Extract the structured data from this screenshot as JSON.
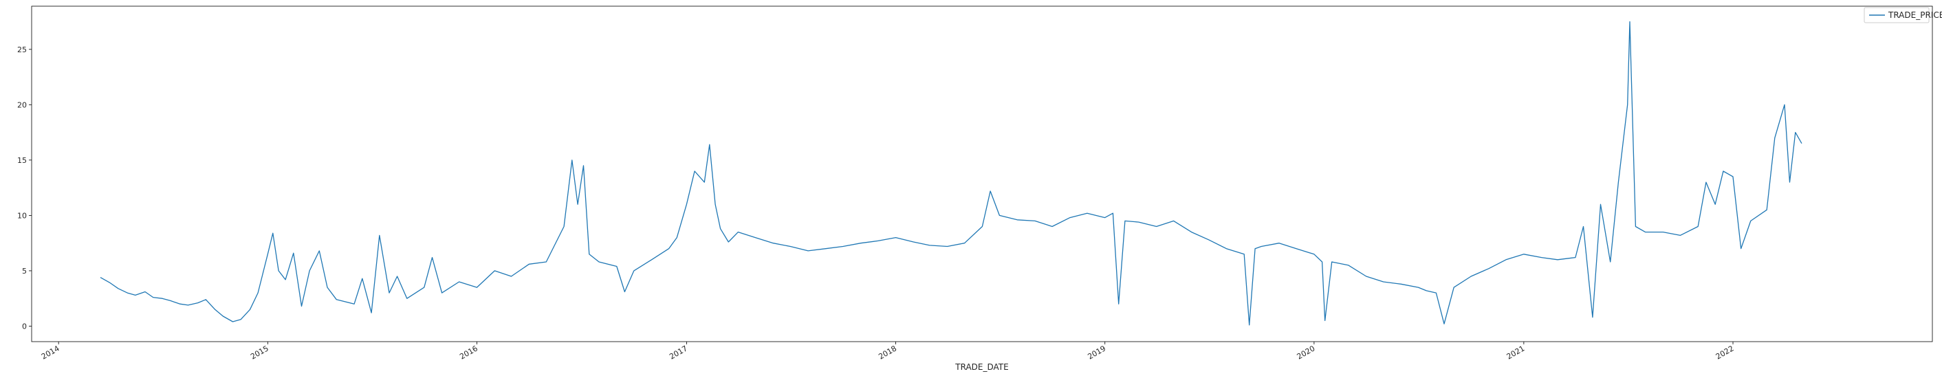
{
  "chart_data": {
    "type": "line",
    "title": "",
    "xlabel": "TRADE_DATE",
    "ylabel": "",
    "xlim": [
      "2013-11-15",
      "2022-12-15"
    ],
    "ylim": [
      -1.4,
      28.9
    ],
    "grid": false,
    "legend_position": "top-right",
    "line_color": "#1f77b4",
    "x_ticks": [
      "2014",
      "2015",
      "2016",
      "2017",
      "2018",
      "2019",
      "2020",
      "2021",
      "2022"
    ],
    "y_ticks": [
      "0",
      "5",
      "10",
      "15",
      "20",
      "25"
    ],
    "series": [
      {
        "name": "TRADE_PRICE",
        "points": [
          [
            "2014-03-15",
            4.4
          ],
          [
            "2014-04-01",
            3.9
          ],
          [
            "2014-04-15",
            3.4
          ],
          [
            "2014-05-01",
            3.0
          ],
          [
            "2014-05-15",
            2.8
          ],
          [
            "2014-06-01",
            3.1
          ],
          [
            "2014-06-15",
            2.6
          ],
          [
            "2014-07-01",
            2.5
          ],
          [
            "2014-07-15",
            2.3
          ],
          [
            "2014-08-01",
            2.0
          ],
          [
            "2014-08-15",
            1.9
          ],
          [
            "2014-09-01",
            2.1
          ],
          [
            "2014-09-15",
            2.4
          ],
          [
            "2014-10-01",
            1.5
          ],
          [
            "2014-10-15",
            0.9
          ],
          [
            "2014-11-01",
            0.4
          ],
          [
            "2014-11-15",
            0.6
          ],
          [
            "2014-12-01",
            1.5
          ],
          [
            "2014-12-15",
            3.0
          ],
          [
            "2015-01-01",
            6.5
          ],
          [
            "2015-01-10",
            8.4
          ],
          [
            "2015-01-20",
            5.0
          ],
          [
            "2015-02-01",
            4.2
          ],
          [
            "2015-02-15",
            6.6
          ],
          [
            "2015-03-01",
            1.8
          ],
          [
            "2015-03-15",
            5.0
          ],
          [
            "2015-04-01",
            6.8
          ],
          [
            "2015-04-15",
            3.5
          ],
          [
            "2015-05-01",
            2.4
          ],
          [
            "2015-06-01",
            2.0
          ],
          [
            "2015-06-15",
            4.3
          ],
          [
            "2015-07-01",
            1.2
          ],
          [
            "2015-07-15",
            8.2
          ],
          [
            "2015-08-01",
            3.0
          ],
          [
            "2015-08-15",
            4.5
          ],
          [
            "2015-09-01",
            2.5
          ],
          [
            "2015-10-01",
            3.5
          ],
          [
            "2015-10-15",
            6.2
          ],
          [
            "2015-11-01",
            3.0
          ],
          [
            "2015-12-01",
            4.0
          ],
          [
            "2016-01-01",
            3.5
          ],
          [
            "2016-02-01",
            5.0
          ],
          [
            "2016-03-01",
            4.5
          ],
          [
            "2016-04-01",
            5.6
          ],
          [
            "2016-05-01",
            5.8
          ],
          [
            "2016-06-01",
            9.0
          ],
          [
            "2016-06-15",
            15.0
          ],
          [
            "2016-06-25",
            11.0
          ],
          [
            "2016-07-05",
            14.5
          ],
          [
            "2016-07-15",
            6.5
          ],
          [
            "2016-08-01",
            5.8
          ],
          [
            "2016-09-01",
            5.4
          ],
          [
            "2016-09-15",
            3.1
          ],
          [
            "2016-10-01",
            5.0
          ],
          [
            "2016-11-01",
            6.0
          ],
          [
            "2016-12-01",
            7.0
          ],
          [
            "2016-12-15",
            8.0
          ],
          [
            "2017-01-01",
            11.0
          ],
          [
            "2017-01-15",
            14.0
          ],
          [
            "2017-02-01",
            13.0
          ],
          [
            "2017-02-10",
            16.4
          ],
          [
            "2017-02-20",
            11.0
          ],
          [
            "2017-03-01",
            8.8
          ],
          [
            "2017-03-15",
            7.6
          ],
          [
            "2017-04-01",
            8.5
          ],
          [
            "2017-05-01",
            8.0
          ],
          [
            "2017-06-01",
            7.5
          ],
          [
            "2017-07-01",
            7.2
          ],
          [
            "2017-08-01",
            6.8
          ],
          [
            "2017-09-01",
            7.0
          ],
          [
            "2017-10-01",
            7.2
          ],
          [
            "2017-11-01",
            7.5
          ],
          [
            "2017-12-01",
            7.7
          ],
          [
            "2018-01-01",
            8.0
          ],
          [
            "2018-02-01",
            7.6
          ],
          [
            "2018-03-01",
            7.3
          ],
          [
            "2018-04-01",
            7.2
          ],
          [
            "2018-05-01",
            7.5
          ],
          [
            "2018-06-01",
            9.0
          ],
          [
            "2018-06-15",
            12.2
          ],
          [
            "2018-07-01",
            10.0
          ],
          [
            "2018-08-01",
            9.6
          ],
          [
            "2018-09-01",
            9.5
          ],
          [
            "2018-10-01",
            9.0
          ],
          [
            "2018-11-01",
            9.8
          ],
          [
            "2018-12-01",
            10.2
          ],
          [
            "2019-01-01",
            9.8
          ],
          [
            "2019-01-15",
            10.2
          ],
          [
            "2019-01-25",
            2.0
          ],
          [
            "2019-02-05",
            9.5
          ],
          [
            "2019-03-01",
            9.4
          ],
          [
            "2019-04-01",
            9.0
          ],
          [
            "2019-05-01",
            9.5
          ],
          [
            "2019-06-01",
            8.5
          ],
          [
            "2019-07-01",
            7.8
          ],
          [
            "2019-08-01",
            7.0
          ],
          [
            "2019-09-01",
            6.5
          ],
          [
            "2019-09-10",
            0.1
          ],
          [
            "2019-09-20",
            7.0
          ],
          [
            "2019-10-01",
            7.2
          ],
          [
            "2019-11-01",
            7.5
          ],
          [
            "2019-12-01",
            7.0
          ],
          [
            "2020-01-01",
            6.5
          ],
          [
            "2020-01-15",
            5.8
          ],
          [
            "2020-01-20",
            0.5
          ],
          [
            "2020-02-01",
            5.8
          ],
          [
            "2020-03-01",
            5.5
          ],
          [
            "2020-04-01",
            4.5
          ],
          [
            "2020-05-01",
            4.0
          ],
          [
            "2020-06-01",
            3.8
          ],
          [
            "2020-07-01",
            3.5
          ],
          [
            "2020-07-15",
            3.2
          ],
          [
            "2020-08-01",
            3.0
          ],
          [
            "2020-08-15",
            0.2
          ],
          [
            "2020-09-01",
            3.5
          ],
          [
            "2020-10-01",
            4.5
          ],
          [
            "2020-11-01",
            5.2
          ],
          [
            "2020-12-01",
            6.0
          ],
          [
            "2021-01-01",
            6.5
          ],
          [
            "2021-02-01",
            6.2
          ],
          [
            "2021-03-01",
            6.0
          ],
          [
            "2021-04-01",
            6.2
          ],
          [
            "2021-04-15",
            9.0
          ],
          [
            "2021-05-01",
            0.8
          ],
          [
            "2021-05-15",
            11.0
          ],
          [
            "2021-06-01",
            5.8
          ],
          [
            "2021-06-15",
            13.0
          ],
          [
            "2021-07-01",
            20.0
          ],
          [
            "2021-07-05",
            27.5
          ],
          [
            "2021-07-15",
            9.0
          ],
          [
            "2021-08-01",
            8.5
          ],
          [
            "2021-09-01",
            8.5
          ],
          [
            "2021-10-01",
            8.2
          ],
          [
            "2021-11-01",
            9.0
          ],
          [
            "2021-11-15",
            13.0
          ],
          [
            "2021-12-01",
            11.0
          ],
          [
            "2021-12-15",
            14.0
          ],
          [
            "2022-01-01",
            13.5
          ],
          [
            "2022-01-15",
            7.0
          ],
          [
            "2022-02-01",
            9.5
          ],
          [
            "2022-03-01",
            10.5
          ],
          [
            "2022-03-15",
            17.0
          ],
          [
            "2022-04-01",
            20.0
          ],
          [
            "2022-04-10",
            13.0
          ],
          [
            "2022-04-20",
            17.5
          ],
          [
            "2022-05-01",
            16.5
          ]
        ]
      }
    ]
  }
}
